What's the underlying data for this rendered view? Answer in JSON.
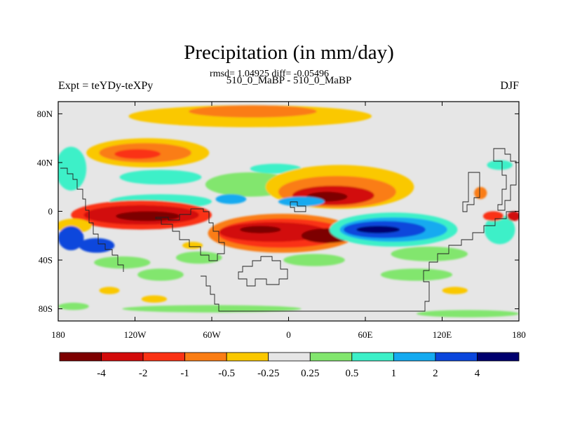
{
  "chart_data": {
    "type": "heatmap",
    "title": "Precipitation (in mm/day)",
    "subtitle": "rmsd= 1.04925 diff= -0.05496",
    "left_label": "Expt = teYDy-teXPy",
    "center_label": "510_0_MaBP - 510_0_MaBP",
    "right_label": "DJF",
    "x_ticks": [
      "180",
      "120W",
      "60W",
      "0",
      "60E",
      "120E",
      "180"
    ],
    "x_tick_values": [
      -180,
      -120,
      -60,
      0,
      60,
      120,
      180
    ],
    "y_ticks": [
      "80N",
      "40N",
      "0",
      "40S",
      "80S"
    ],
    "y_tick_values": [
      80,
      40,
      0,
      -40,
      -80
    ],
    "xlim": [
      -180,
      180
    ],
    "ylim": [
      -90,
      90
    ],
    "colorbar": {
      "labels": [
        "-4",
        "-2",
        "-1",
        "-0.5",
        "-0.25",
        "0.25",
        "0.5",
        "1",
        "2",
        "4"
      ],
      "colors": [
        "#7d0000",
        "#d20a0a",
        "#fa3214",
        "#fa7d14",
        "#fac800",
        "#e6e6e6",
        "#82e66e",
        "#3cf0c8",
        "#14aaf0",
        "#0a46dc",
        "#00006e"
      ]
    },
    "blobs": [
      {
        "lon": -30,
        "lat": 78,
        "rx": 95,
        "ry": 9,
        "level": 4
      },
      {
        "lon": -28,
        "lat": 82,
        "rx": 50,
        "ry": 5,
        "level": 3
      },
      {
        "lon": -110,
        "lat": 48,
        "rx": 48,
        "ry": 12,
        "level": 4
      },
      {
        "lon": -112,
        "lat": 48,
        "rx": 36,
        "ry": 8,
        "level": 3
      },
      {
        "lon": -118,
        "lat": 47,
        "rx": 18,
        "ry": 4,
        "level": 2
      },
      {
        "lon": -170,
        "lat": 35,
        "rx": 12,
        "ry": 18,
        "level": 7
      },
      {
        "lon": -100,
        "lat": 28,
        "rx": 32,
        "ry": 6,
        "level": 7
      },
      {
        "lon": -30,
        "lat": 22,
        "rx": 35,
        "ry": 10,
        "level": 6
      },
      {
        "lon": -10,
        "lat": 35,
        "rx": 20,
        "ry": 4,
        "level": 7
      },
      {
        "lon": 40,
        "lat": 20,
        "rx": 58,
        "ry": 18,
        "level": 4
      },
      {
        "lon": 38,
        "lat": 16,
        "rx": 46,
        "ry": 13,
        "level": 3
      },
      {
        "lon": 35,
        "lat": 13,
        "rx": 32,
        "ry": 8,
        "level": 1
      },
      {
        "lon": 30,
        "lat": 12,
        "rx": 16,
        "ry": 4,
        "level": 0
      },
      {
        "lon": -100,
        "lat": 8,
        "rx": 40,
        "ry": 6,
        "level": 7
      },
      {
        "lon": -45,
        "lat": 10,
        "rx": 12,
        "ry": 4,
        "level": 8
      },
      {
        "lon": 10,
        "lat": 8,
        "rx": 18,
        "ry": 4,
        "level": 8
      },
      {
        "lon": -115,
        "lat": -3,
        "rx": 55,
        "ry": 12,
        "level": 2
      },
      {
        "lon": -115,
        "lat": -3,
        "rx": 45,
        "ry": 8,
        "level": 1
      },
      {
        "lon": -110,
        "lat": -4,
        "rx": 25,
        "ry": 4,
        "level": 0
      },
      {
        "lon": -168,
        "lat": -12,
        "rx": 14,
        "ry": 6,
        "level": 4
      },
      {
        "lon": -170,
        "lat": -22,
        "rx": 10,
        "ry": 10,
        "level": 9
      },
      {
        "lon": -150,
        "lat": -28,
        "rx": 14,
        "ry": 6,
        "level": 9
      },
      {
        "lon": -5,
        "lat": -18,
        "rx": 58,
        "ry": 16,
        "level": 3
      },
      {
        "lon": -5,
        "lat": -18,
        "rx": 50,
        "ry": 12,
        "level": 2
      },
      {
        "lon": -12,
        "lat": -17,
        "rx": 42,
        "ry": 8,
        "level": 1
      },
      {
        "lon": -22,
        "lat": -15,
        "rx": 16,
        "ry": 3,
        "level": 0
      },
      {
        "lon": 30,
        "lat": -20,
        "rx": 20,
        "ry": 6,
        "level": 0
      },
      {
        "lon": 60,
        "lat": -9,
        "rx": 8,
        "ry": 6,
        "level": 5
      },
      {
        "lon": 82,
        "lat": -15,
        "rx": 50,
        "ry": 14,
        "level": 7
      },
      {
        "lon": 82,
        "lat": -15,
        "rx": 42,
        "ry": 10,
        "level": 8
      },
      {
        "lon": 75,
        "lat": -15,
        "rx": 32,
        "ry": 7,
        "level": 9
      },
      {
        "lon": 70,
        "lat": -15,
        "rx": 17,
        "ry": 3,
        "level": 10
      },
      {
        "lon": 110,
        "lat": -35,
        "rx": 30,
        "ry": 6,
        "level": 6
      },
      {
        "lon": 165,
        "lat": -15,
        "rx": 12,
        "ry": 12,
        "level": 7
      },
      {
        "lon": 160,
        "lat": -4,
        "rx": 8,
        "ry": 4,
        "level": 2
      },
      {
        "lon": 176,
        "lat": -4,
        "rx": 5,
        "ry": 4,
        "level": 1
      },
      {
        "lon": 150,
        "lat": 15,
        "rx": 5,
        "ry": 5,
        "level": 3
      },
      {
        "lon": 165,
        "lat": 38,
        "rx": 10,
        "ry": 4,
        "level": 7
      },
      {
        "lon": -70,
        "lat": -38,
        "rx": 18,
        "ry": 5,
        "level": 6
      },
      {
        "lon": -75,
        "lat": -28,
        "rx": 8,
        "ry": 3,
        "level": 4
      },
      {
        "lon": -130,
        "lat": -42,
        "rx": 22,
        "ry": 5,
        "level": 6
      },
      {
        "lon": -100,
        "lat": -52,
        "rx": 18,
        "ry": 5,
        "level": 6
      },
      {
        "lon": 20,
        "lat": -40,
        "rx": 24,
        "ry": 5,
        "level": 6
      },
      {
        "lon": 100,
        "lat": -52,
        "rx": 28,
        "ry": 5,
        "level": 6
      },
      {
        "lon": -140,
        "lat": -65,
        "rx": 8,
        "ry": 3,
        "level": 4
      },
      {
        "lon": -105,
        "lat": -72,
        "rx": 10,
        "ry": 3,
        "level": 4
      },
      {
        "lon": 130,
        "lat": -65,
        "rx": 10,
        "ry": 3,
        "level": 4
      },
      {
        "lon": -60,
        "lat": -80,
        "rx": 70,
        "ry": 3,
        "level": 6
      },
      {
        "lon": 140,
        "lat": -84,
        "rx": 40,
        "ry": 3,
        "level": 6
      },
      {
        "lon": -168,
        "lat": -78,
        "rx": 12,
        "ry": 3,
        "level": 6
      }
    ]
  }
}
